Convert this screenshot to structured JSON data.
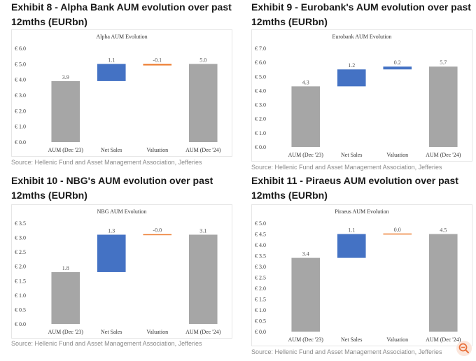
{
  "colors": {
    "gray": "#a6a6a6",
    "blue": "#4472c4",
    "orange": "#ed7d31",
    "axis_text": "#444444",
    "label_text": "#555555"
  },
  "exhibits": [
    {
      "title": "Exhibit 8 - Alpha Bank AUM evolution over past 12mths (EURbn)",
      "source": "Source: Hellenic Fund and Asset Management Association, Jefferies"
    },
    {
      "title": "Exhibit 9 - Eurobank's AUM evolution over past 12mths (EURbn)",
      "source": "Source: Hellenic Fund and Asset Management Association, Jefferies"
    },
    {
      "title": "Exhibit 10 - NBG's AUM evolution over past 12mths (EURbn)",
      "source": "Source: Hellenic Fund and Asset Management Association, Jefferies"
    },
    {
      "title": "Exhibit 11 - Piraeus AUM evolution over past 12mths (EURbn)",
      "source": "Source: Hellenic Fund and Asset Management Association, Jefferies"
    }
  ],
  "chart_data": [
    {
      "type": "bar",
      "subtype": "waterfall",
      "title": "Alpha AUM Evolution",
      "categories": [
        "AUM (Dec '23)",
        "Net Sales",
        "Valuation",
        "AUM (Dec '24)"
      ],
      "values": [
        3.9,
        1.1,
        -0.1,
        5.0
      ],
      "data_labels": [
        "3.9",
        "1.1",
        "-0.1",
        "5.0"
      ],
      "kinds": [
        "total",
        "delta",
        "delta",
        "total"
      ],
      "ylim": [
        0,
        6
      ],
      "yticks": [
        "€ 0.0",
        "€ 1.0",
        "€ 2.0",
        "€ 3.0",
        "€ 4.0",
        "€ 5.0",
        "€ 6.0"
      ],
      "tick_step": 1,
      "grid": false
    },
    {
      "type": "bar",
      "subtype": "waterfall",
      "title": "Eurobank AUM Evolution",
      "categories": [
        "AUM (Dec '23)",
        "Net Sales",
        "Valuation",
        "AUM (Dec '24)"
      ],
      "values": [
        4.3,
        1.2,
        0.2,
        5.7
      ],
      "data_labels": [
        "4.3",
        "1.2",
        "0.2",
        "5.7"
      ],
      "kinds": [
        "total",
        "delta",
        "delta",
        "total"
      ],
      "ylim": [
        0,
        7
      ],
      "yticks": [
        "€ 0.0",
        "€ 1.0",
        "€ 2.0",
        "€ 3.0",
        "€ 4.0",
        "€ 5.0",
        "€ 6.0",
        "€ 7.0"
      ],
      "tick_step": 1,
      "grid": false
    },
    {
      "type": "bar",
      "subtype": "waterfall",
      "title": "NBG AUM Evolution",
      "categories": [
        "AUM (Dec '23)",
        "Net Sales",
        "Valuation",
        "AUM (Dec '24)"
      ],
      "values": [
        1.8,
        1.3,
        -0.0,
        3.1
      ],
      "data_labels": [
        "1.8",
        "1.3",
        "-0.0",
        "3.1"
      ],
      "kinds": [
        "total",
        "delta",
        "delta",
        "total"
      ],
      "ylim": [
        0,
        3.5
      ],
      "yticks": [
        "€ 0.0",
        "€ 0.5",
        "€ 1.0",
        "€ 1.5",
        "€ 2.0",
        "€ 2.5",
        "€ 3.0",
        "€ 3.5"
      ],
      "tick_step": 0.5,
      "grid": false
    },
    {
      "type": "bar",
      "subtype": "waterfall",
      "title": "Piraeus AUM Evolution",
      "categories": [
        "AUM (Dec '23)",
        "Net Sales",
        "Valuation",
        "AUM (Dec '24)"
      ],
      "values": [
        3.4,
        1.1,
        0.0,
        4.5
      ],
      "data_labels": [
        "3.4",
        "1.1",
        "0.0",
        "4.5"
      ],
      "kinds": [
        "total",
        "delta",
        "delta",
        "total"
      ],
      "ylim": [
        0,
        5
      ],
      "yticks": [
        "€ 0.0",
        "€ 0.5",
        "€ 1.0",
        "€ 1.5",
        "€ 2.0",
        "€ 2.5",
        "€ 3.0",
        "€ 3.5",
        "€ 4.0",
        "€ 4.5",
        "€ 5.0"
      ],
      "tick_step": 0.5,
      "grid": false
    }
  ],
  "zoom_button": {
    "icon": "zoom-icon"
  }
}
